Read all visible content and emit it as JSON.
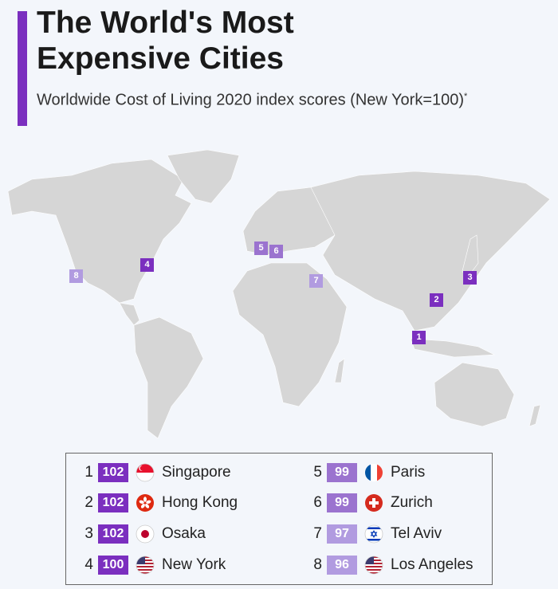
{
  "header": {
    "title": "The World's Most Expensive Cities",
    "subtitle": "Worldwide Cost of Living 2020 index scores (New York=100)",
    "footnote_marker": "*"
  },
  "colors": {
    "accent": "#7b2fbf",
    "tier_high": "#7b2fbf",
    "tier_mid": "#9b73cf",
    "tier_low": "#b19be0",
    "land": "#d6d6d6",
    "background": "#f3f6fb"
  },
  "map": {
    "markers": [
      {
        "rank": "1",
        "city": "Singapore"
      },
      {
        "rank": "2",
        "city": "Hong Kong"
      },
      {
        "rank": "3",
        "city": "Osaka"
      },
      {
        "rank": "4",
        "city": "New York"
      },
      {
        "rank": "5",
        "city": "Paris"
      },
      {
        "rank": "6",
        "city": "Zurich"
      },
      {
        "rank": "7",
        "city": "Tel Aviv"
      },
      {
        "rank": "8",
        "city": "Los Angeles"
      }
    ]
  },
  "legend": {
    "items": [
      {
        "rank": "1",
        "score": "102",
        "city": "Singapore",
        "flag": "singapore-flag"
      },
      {
        "rank": "2",
        "score": "102",
        "city": "Hong Kong",
        "flag": "hong-kong-flag"
      },
      {
        "rank": "3",
        "score": "102",
        "city": "Osaka",
        "flag": "japan-flag"
      },
      {
        "rank": "4",
        "score": "100",
        "city": "New York",
        "flag": "usa-flag"
      },
      {
        "rank": "5",
        "score": "99",
        "city": "Paris",
        "flag": "france-flag"
      },
      {
        "rank": "6",
        "score": "99",
        "city": "Zurich",
        "flag": "switzerland-flag"
      },
      {
        "rank": "7",
        "score": "97",
        "city": "Tel Aviv",
        "flag": "israel-flag"
      },
      {
        "rank": "8",
        "score": "96",
        "city": "Los Angeles",
        "flag": "usa-flag"
      }
    ]
  }
}
